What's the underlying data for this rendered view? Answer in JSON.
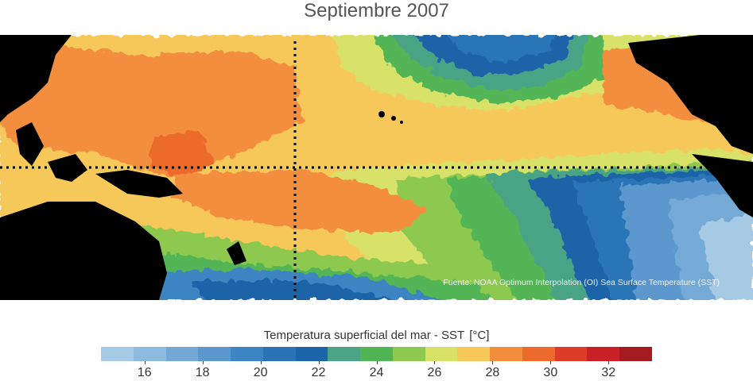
{
  "title": "Septiembre 2007",
  "source_note": "Fuente: NOAA Optimum Interpolation (OI) Sea Surface Temperature (SST)",
  "colorbar": {
    "title": "Temperatura superficial del mar - SST",
    "unit": "[°C]",
    "min": 15,
    "max": 33,
    "step": 1,
    "tick_labels": [
      "16",
      "18",
      "20",
      "22",
      "24",
      "26",
      "28",
      "30",
      "32"
    ],
    "colors": [
      "#a6c9e4",
      "#8dbade",
      "#74a9d6",
      "#5b98cd",
      "#3d84c2",
      "#2a74b6",
      "#1b64a8",
      "#4aa485",
      "#52b555",
      "#8ec94f",
      "#d9e267",
      "#f6c85a",
      "#f28e3c",
      "#ec6a2c",
      "#dd3c28",
      "#c91f26",
      "#a51b22"
    ]
  },
  "map": {
    "reference_lines": [
      "equator",
      "date-line"
    ],
    "land_color": "#000000"
  }
}
